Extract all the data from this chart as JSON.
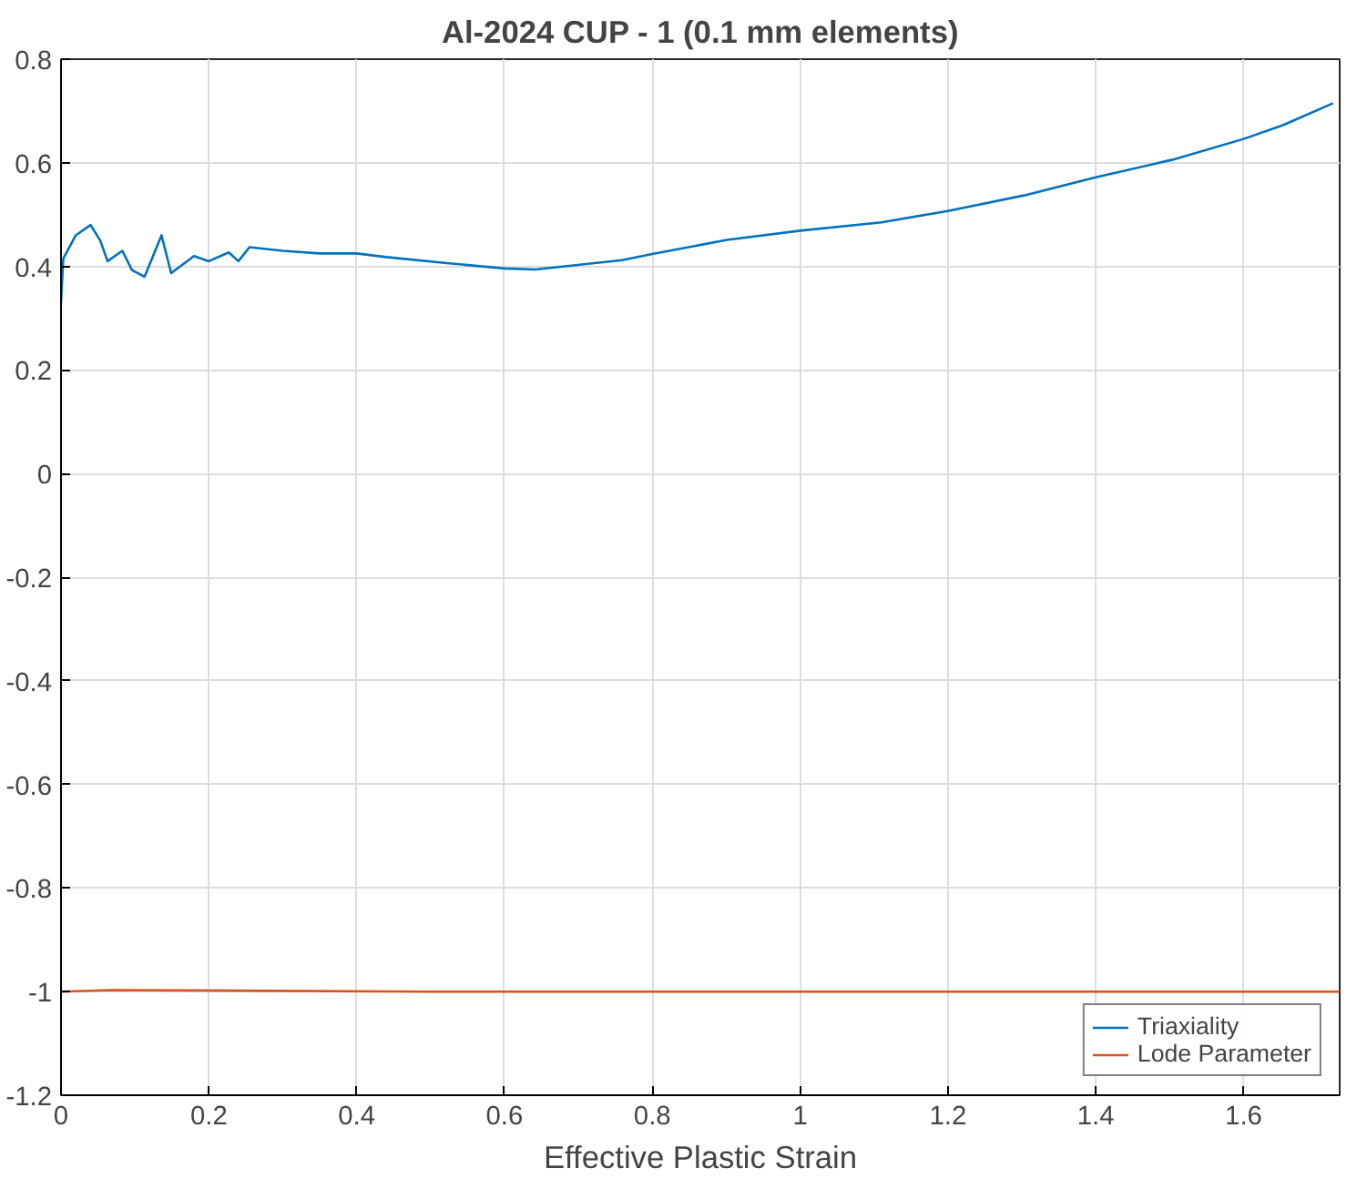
{
  "chart_data": {
    "type": "line",
    "title": "Al-2024 CUP - 1 (0.1 mm elements)",
    "xlabel": "Effective Plastic Strain",
    "xlim": [
      0,
      1.73
    ],
    "ylim": [
      -1.2,
      0.8
    ],
    "xticks": [
      0,
      0.2,
      0.4,
      0.6,
      0.8,
      1,
      1.2,
      1.4,
      1.6
    ],
    "yticks": [
      -1.2,
      -1,
      -0.8,
      -0.6,
      -0.4,
      -0.2,
      0,
      0.2,
      0.4,
      0.6,
      0.8
    ],
    "grid": true,
    "legend": "bottom right",
    "line_style": "solid",
    "marker": "none",
    "series": [
      {
        "name": "Triaxiality",
        "color": "#0072bd",
        "x": [
          0,
          0.003,
          0.02,
          0.04,
          0.053,
          0.063,
          0.083,
          0.096,
          0.113,
          0.136,
          0.149,
          0.18,
          0.2,
          0.227,
          0.24,
          0.255,
          0.3,
          0.35,
          0.4,
          0.44,
          0.525,
          0.6,
          0.642,
          0.759,
          0.8,
          0.901,
          1.0,
          1.11,
          1.2,
          1.303,
          1.4,
          1.504,
          1.6,
          1.654,
          1.721
        ],
        "values": [
          0.33,
          0.415,
          0.46,
          0.48,
          0.45,
          0.41,
          0.43,
          0.393,
          0.38,
          0.46,
          0.387,
          0.42,
          0.41,
          0.427,
          0.41,
          0.437,
          0.43,
          0.425,
          0.425,
          0.418,
          0.406,
          0.396,
          0.394,
          0.412,
          0.424,
          0.451,
          0.469,
          0.485,
          0.507,
          0.537,
          0.572,
          0.606,
          0.646,
          0.673,
          0.715
        ]
      },
      {
        "name": "Lode Parameter",
        "color": "#d95319",
        "x": [
          0,
          0.07,
          0.5,
          1.0,
          1.5,
          1.73
        ],
        "values": [
          -1,
          -0.997,
          -1,
          -1,
          -1,
          -1
        ]
      }
    ]
  }
}
